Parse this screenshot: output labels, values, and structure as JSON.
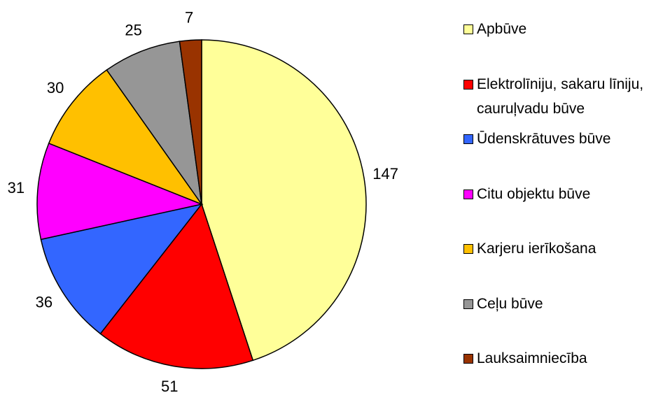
{
  "chart_data": {
    "type": "pie",
    "series": [
      {
        "name": "Apbūve",
        "color": "#ffff99",
        "values": [
          147
        ]
      },
      {
        "name": "Elektrolīniju, sakaru līniju, cauruļvadu būve",
        "color": "#ff0000",
        "values": [
          51
        ]
      },
      {
        "name": "Ūdenskrātuves būve",
        "color": "#3366ff",
        "values": [
          36
        ]
      },
      {
        "name": "Citu objektu būve",
        "color": "#ff00ff",
        "values": [
          31
        ]
      },
      {
        "name": "Karjeru ierīkošana",
        "color": "#ffc000",
        "values": [
          30
        ]
      },
      {
        "name": "Ceļu būve",
        "color": "#969696",
        "values": [
          25
        ]
      },
      {
        "name": "Lauksaimniecība",
        "color": "#993300",
        "values": [
          7
        ]
      }
    ],
    "legend": "right"
  }
}
